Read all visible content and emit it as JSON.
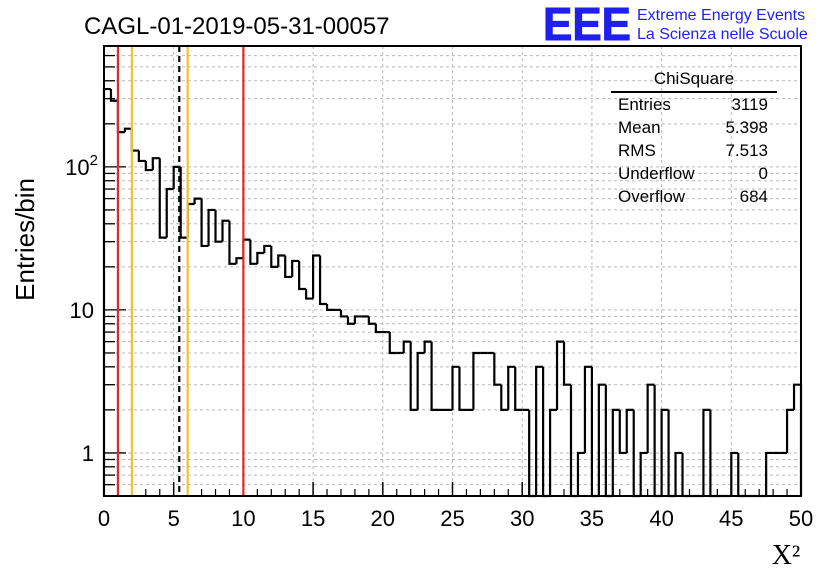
{
  "header": {
    "title": "CAGL-01-2019-05-31-00057",
    "logo_text": "EEE",
    "logo_line1": "Extreme Energy Events",
    "logo_line2": "La Scienza nelle Scuole",
    "logo_color": "#1f1ff0"
  },
  "stats_box": {
    "title": "ChiSquare",
    "rows": [
      {
        "label": "Entries",
        "value": "3119"
      },
      {
        "label": "Mean",
        "value": "5.398"
      },
      {
        "label": "RMS",
        "value": "7.513"
      },
      {
        "label": "Underflow",
        "value": "0"
      },
      {
        "label": "Overflow",
        "value": "684"
      }
    ]
  },
  "chart_data": {
    "type": "histogram",
    "ylabel": "Entries/bin",
    "xlabel": "X²",
    "x_scale": "linear",
    "y_scale": "log",
    "xlim": [
      0,
      50
    ],
    "ylim": [
      0.5,
      700
    ],
    "grid": true,
    "bin_width": 0.5,
    "x_ticks": [
      "0",
      "5",
      "10",
      "15",
      "20",
      "25",
      "30",
      "35",
      "40",
      "45",
      "50"
    ],
    "y_ticks": [
      {
        "value": 1,
        "label": "1"
      },
      {
        "value": 10,
        "label": "10"
      },
      {
        "value": 100,
        "label": "10",
        "exp": "2"
      }
    ],
    "values": [
      350,
      290,
      175,
      185,
      130,
      110,
      95,
      115,
      32,
      70,
      100,
      32,
      55,
      60,
      28,
      50,
      30,
      42,
      21,
      23,
      31,
      21,
      25,
      28,
      20,
      24,
      17,
      22,
      14,
      12,
      24,
      11,
      10,
      10,
      9,
      8,
      9,
      9,
      8,
      7,
      7,
      5,
      5,
      6,
      2,
      5,
      6,
      2,
      2,
      2,
      4,
      2,
      2,
      5,
      5,
      5,
      3,
      2,
      4,
      2,
      2,
      0,
      4,
      0,
      2,
      6,
      3,
      0,
      1,
      4,
      0,
      3,
      0,
      2,
      1,
      2,
      0,
      1,
      3,
      0,
      2,
      0,
      1,
      0,
      0,
      0,
      2,
      0,
      0,
      0,
      1,
      0,
      0,
      0,
      0,
      1,
      1,
      1,
      2,
      3
    ],
    "vertical_lines": [
      {
        "x": 1.0,
        "color": "#e8262a",
        "style": "solid"
      },
      {
        "x": 2.0,
        "color": "#f2c12e",
        "style": "solid"
      },
      {
        "x": 5.4,
        "color": "#000000",
        "style": "dashed"
      },
      {
        "x": 6.0,
        "color": "#f2c12e",
        "style": "solid"
      },
      {
        "x": 10.0,
        "color": "#e8262a",
        "style": "solid"
      }
    ]
  }
}
